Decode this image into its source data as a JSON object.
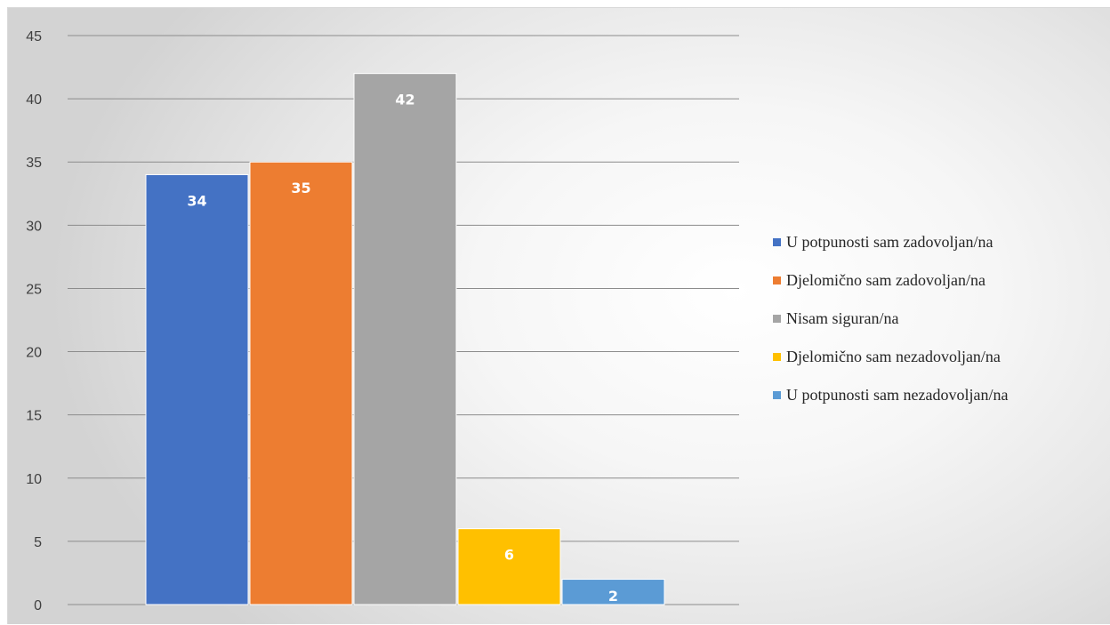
{
  "chart_data": {
    "type": "bar",
    "title": "",
    "xlabel": "",
    "ylabel": "",
    "ylim": [
      0,
      45
    ],
    "yticks": [
      0,
      5,
      10,
      15,
      20,
      25,
      30,
      35,
      40,
      45
    ],
    "grid": true,
    "legend_position": "right",
    "categories": [
      "U potpunosti sam zadovoljan/na",
      "Djelomično sam zadovoljan/na",
      "Nisam siguran/na",
      "Djelomično sam nezadovoljan/na",
      "U potpunosti sam nezadovoljan/na"
    ],
    "values": [
      34,
      35,
      42,
      6,
      2
    ],
    "data_labels": [
      "34",
      "35",
      "42",
      "6",
      "2"
    ],
    "colors": [
      "#4472c4",
      "#ed7d31",
      "#a5a5a5",
      "#ffc000",
      "#5b9bd5"
    ]
  }
}
